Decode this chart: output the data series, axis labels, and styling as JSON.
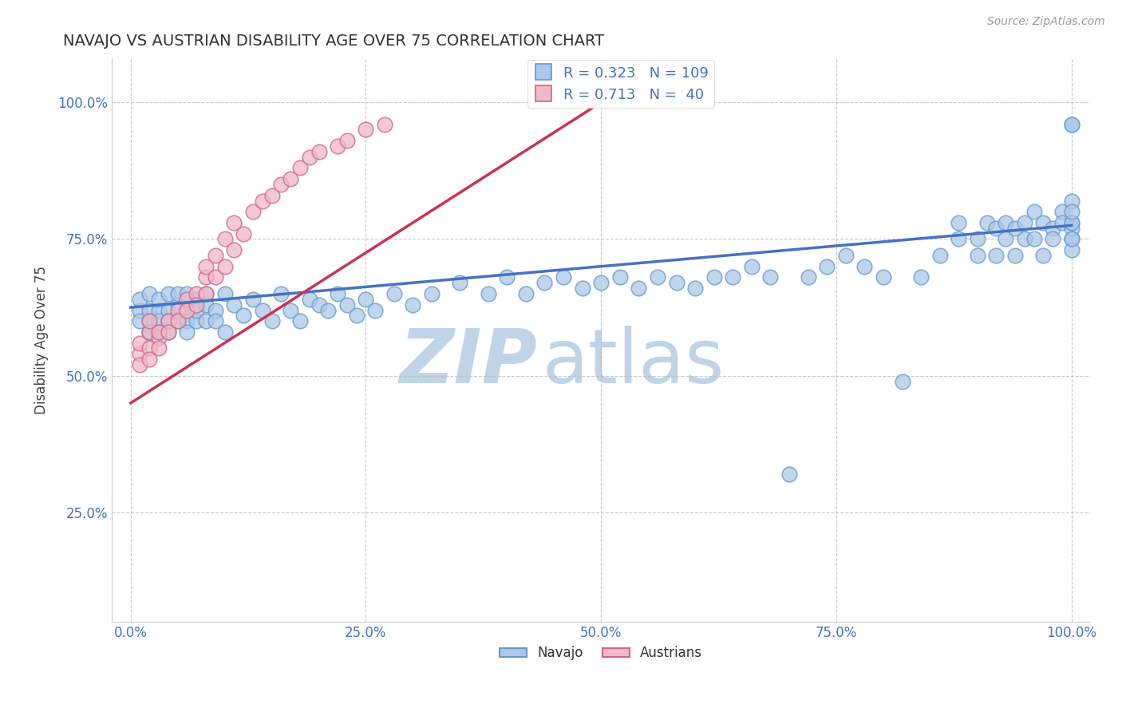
{
  "title": "NAVAJO VS AUSTRIAN DISABILITY AGE OVER 75 CORRELATION CHART",
  "source": "Source: ZipAtlas.com",
  "ylabel": "Disability Age Over 75",
  "watermark": "ZIPatlas",
  "y_tick_vals": [
    0.25,
    0.5,
    0.75,
    1.0
  ],
  "xlim": [
    -0.02,
    1.02
  ],
  "ylim": [
    0.05,
    1.08
  ],
  "navajo_R": 0.323,
  "navajo_N": 109,
  "austrian_R": 0.713,
  "austrian_N": 40,
  "navajo_color": "#adc8e8",
  "navajo_edge_color": "#6699cc",
  "austrian_color": "#f0b8c8",
  "austrian_edge_color": "#cc6688",
  "trend_navajo_color": "#4472c4",
  "trend_austrian_color": "#cc3355",
  "tick_color": "#4472c4",
  "title_color": "#333333",
  "source_color": "#999999",
  "grid_color": "#bbbbbb",
  "watermark_color": "#c0d4e8",
  "background_color": "#ffffff",
  "navajo_x": [
    0.01,
    0.01,
    0.01,
    0.02,
    0.02,
    0.02,
    0.02,
    0.02,
    0.03,
    0.03,
    0.03,
    0.03,
    0.04,
    0.04,
    0.04,
    0.04,
    0.05,
    0.05,
    0.05,
    0.06,
    0.06,
    0.06,
    0.06,
    0.07,
    0.07,
    0.07,
    0.08,
    0.08,
    0.08,
    0.09,
    0.09,
    0.1,
    0.1,
    0.11,
    0.12,
    0.13,
    0.14,
    0.15,
    0.16,
    0.17,
    0.18,
    0.19,
    0.2,
    0.21,
    0.22,
    0.23,
    0.24,
    0.25,
    0.26,
    0.28,
    0.3,
    0.32,
    0.35,
    0.38,
    0.4,
    0.42,
    0.44,
    0.46,
    0.48,
    0.5,
    0.52,
    0.54,
    0.56,
    0.58,
    0.6,
    0.62,
    0.64,
    0.66,
    0.68,
    0.7,
    0.72,
    0.74,
    0.76,
    0.78,
    0.8,
    0.82,
    0.84,
    0.86,
    0.88,
    0.88,
    0.9,
    0.9,
    0.91,
    0.92,
    0.92,
    0.93,
    0.93,
    0.94,
    0.94,
    0.95,
    0.95,
    0.96,
    0.96,
    0.97,
    0.97,
    0.98,
    0.98,
    0.99,
    0.99,
    1.0,
    1.0,
    1.0,
    1.0,
    1.0,
    1.0,
    1.0,
    1.0,
    1.0,
    1.0
  ],
  "navajo_y": [
    0.62,
    0.64,
    0.6,
    0.58,
    0.62,
    0.6,
    0.65,
    0.58,
    0.62,
    0.64,
    0.6,
    0.58,
    0.62,
    0.65,
    0.6,
    0.58,
    0.63,
    0.6,
    0.65,
    0.62,
    0.6,
    0.65,
    0.58,
    0.64,
    0.6,
    0.62,
    0.65,
    0.6,
    0.63,
    0.62,
    0.6,
    0.58,
    0.65,
    0.63,
    0.61,
    0.64,
    0.62,
    0.6,
    0.65,
    0.62,
    0.6,
    0.64,
    0.63,
    0.62,
    0.65,
    0.63,
    0.61,
    0.64,
    0.62,
    0.65,
    0.63,
    0.65,
    0.67,
    0.65,
    0.68,
    0.65,
    0.67,
    0.68,
    0.66,
    0.67,
    0.68,
    0.66,
    0.68,
    0.67,
    0.66,
    0.68,
    0.68,
    0.7,
    0.68,
    0.32,
    0.68,
    0.7,
    0.72,
    0.7,
    0.68,
    0.49,
    0.68,
    0.72,
    0.75,
    0.78,
    0.72,
    0.75,
    0.78,
    0.72,
    0.77,
    0.75,
    0.78,
    0.72,
    0.77,
    0.75,
    0.78,
    0.8,
    0.75,
    0.78,
    0.72,
    0.77,
    0.75,
    0.8,
    0.78,
    0.82,
    0.78,
    0.75,
    0.73,
    0.77,
    0.75,
    0.78,
    0.8,
    0.96,
    0.96
  ],
  "austrian_x": [
    0.01,
    0.01,
    0.01,
    0.02,
    0.02,
    0.02,
    0.02,
    0.03,
    0.03,
    0.03,
    0.04,
    0.04,
    0.05,
    0.05,
    0.06,
    0.06,
    0.07,
    0.07,
    0.08,
    0.08,
    0.08,
    0.09,
    0.09,
    0.1,
    0.1,
    0.11,
    0.11,
    0.12,
    0.13,
    0.14,
    0.15,
    0.16,
    0.17,
    0.18,
    0.19,
    0.2,
    0.22,
    0.23,
    0.25,
    0.27
  ],
  "austrian_y": [
    0.54,
    0.56,
    0.52,
    0.58,
    0.55,
    0.53,
    0.6,
    0.57,
    0.55,
    0.58,
    0.6,
    0.58,
    0.62,
    0.6,
    0.64,
    0.62,
    0.65,
    0.63,
    0.68,
    0.65,
    0.7,
    0.68,
    0.72,
    0.7,
    0.75,
    0.73,
    0.78,
    0.76,
    0.8,
    0.82,
    0.83,
    0.85,
    0.86,
    0.88,
    0.9,
    0.91,
    0.92,
    0.93,
    0.95,
    0.96
  ],
  "navajo_trend_x0": 0.0,
  "navajo_trend_y0": 0.625,
  "navajo_trend_x1": 1.0,
  "navajo_trend_y1": 0.775,
  "austrian_trend_x0": 0.0,
  "austrian_trend_y0": 0.45,
  "austrian_trend_x1": 0.5,
  "austrian_trend_y1": 1.0
}
